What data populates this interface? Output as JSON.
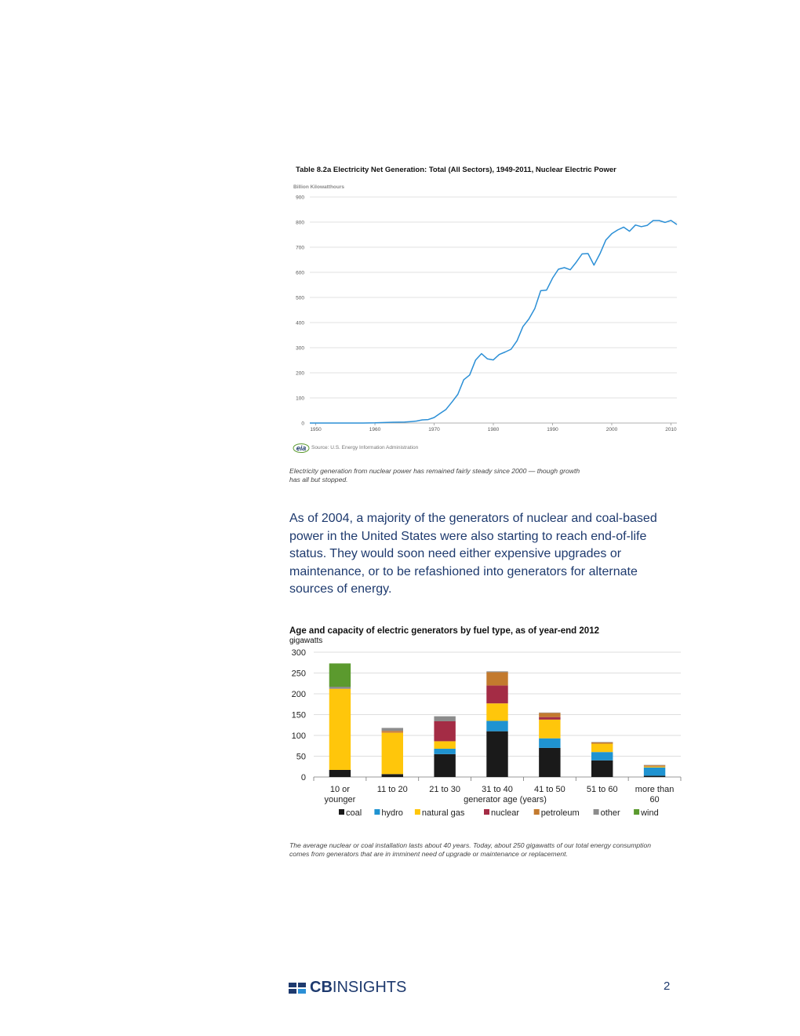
{
  "chart_data": [
    {
      "type": "line",
      "title": "Table 8.2a Electricity Net Generation: Total (All Sectors), 1949-2011, Nuclear Electric Power",
      "ylabel": "Billion Kilowatthours",
      "xlim": [
        1949,
        2011
      ],
      "ylim": [
        0,
        900
      ],
      "y_ticks": [
        "0",
        "100",
        "200",
        "300",
        "400",
        "500",
        "600",
        "700",
        "800",
        "900"
      ],
      "x_ticks": [
        "1950",
        "1960",
        "1970",
        "1980",
        "1990",
        "2000",
        "2010"
      ],
      "grid": true,
      "color": "#2b8fd6",
      "source": "Source: U.S. Energy Information Administration",
      "series": [
        {
          "x": [
            1949,
            1950,
            1951,
            1952,
            1953,
            1954,
            1955,
            1956,
            1957,
            1958,
            1959,
            1960,
            1961,
            1962,
            1963,
            1964,
            1965,
            1966,
            1967,
            1968,
            1969,
            1970,
            1971,
            1972,
            1973,
            1974,
            1975,
            1976,
            1977,
            1978,
            1979,
            1980,
            1981,
            1982,
            1983,
            1984,
            1985,
            1986,
            1987,
            1988,
            1989,
            1990,
            1991,
            1992,
            1993,
            1994,
            1995,
            1996,
            1997,
            1998,
            1999,
            2000,
            2001,
            2002,
            2003,
            2004,
            2005,
            2006,
            2007,
            2008,
            2009,
            2010,
            2011
          ],
          "y": [
            0,
            0,
            0,
            0,
            0,
            0,
            0,
            0,
            0,
            0,
            0.2,
            0.5,
            1.7,
            2.3,
            3.2,
            3.3,
            3.7,
            5.5,
            7.7,
            12.5,
            13.9,
            21.8,
            38.1,
            54.1,
            83.5,
            114,
            172.5,
            191.1,
            250.9,
            276.4,
            255.2,
            251.1,
            272.7,
            282.8,
            293.7,
            327.6,
            383.7,
            414,
            455.3,
            527,
            529.4,
            576.9,
            612.6,
            618.8,
            610.3,
            640.4,
            673.4,
            674.7,
            628.6,
            673.7,
            728.3,
            753.9,
            768.8,
            780.1,
            763.7,
            788.5,
            782,
            787.2,
            806.4,
            806.2,
            798.9,
            807,
            790.2
          ]
        }
      ]
    },
    {
      "type": "bar",
      "stacked": true,
      "title": "Age and capacity of electric generators by fuel type, as of year-end 2012",
      "ylabel": "gigawatts",
      "xlabel": "generator age (years)",
      "ylim": [
        0,
        300
      ],
      "y_ticks": [
        "0",
        "50",
        "100",
        "150",
        "200",
        "250",
        "300"
      ],
      "legend_position": "bottom",
      "categories": [
        [
          "10 or",
          "younger"
        ],
        [
          "11 to 20"
        ],
        [
          "21 to 30"
        ],
        [
          "31 to 40"
        ],
        [
          "41 to 50"
        ],
        [
          "51 to 60"
        ],
        [
          "more than",
          "60"
        ]
      ],
      "series": [
        {
          "name": "coal",
          "color": "#1a1a1a",
          "values": [
            17,
            7,
            55,
            110,
            70,
            40,
            3
          ]
        },
        {
          "name": "hydro",
          "color": "#1f93d1",
          "values": [
            0,
            0,
            13,
            25,
            23,
            20,
            20
          ]
        },
        {
          "name": "natural gas",
          "color": "#ffc60b",
          "values": [
            195,
            100,
            18,
            42,
            45,
            20,
            2
          ]
        },
        {
          "name": "nuclear",
          "color": "#a42c45",
          "values": [
            0,
            1,
            48,
            43,
            6,
            0,
            0
          ]
        },
        {
          "name": "petroleum",
          "color": "#c37a2e",
          "values": [
            0,
            3,
            0,
            32,
            10,
            3,
            3
          ]
        },
        {
          "name": "other",
          "color": "#8c8c8c",
          "values": [
            5,
            7,
            12,
            2,
            1,
            1,
            1
          ]
        },
        {
          "name": "wind",
          "color": "#5b9a2e",
          "values": [
            56,
            0,
            0,
            0,
            0,
            0,
            0
          ]
        }
      ]
    }
  ],
  "captions": {
    "chart1": "Electricity generation from nuclear power has remained fairly steady since 2000 — though growth has all but stopped.",
    "chart2": "The average nuclear or coal installation lasts about 40 years. Today, about 250 gigawatts of our total energy consumption comes from generators that are in imminent need of upgrade or maintenance or replacement."
  },
  "body_text": "As of 2004, a majority of the generators of nuclear and coal-based power in the United States were also starting to reach end-of-life status. They would soon need either expensive upgrades or maintenance, or to be refashioned into generators for alternate sources of energy.",
  "eia_logo_text": "eia",
  "footer": {
    "logo_cb": "CB",
    "logo_insights": "INSIGHTS",
    "page_number": "2",
    "brand_color": "#1e3a6e"
  }
}
